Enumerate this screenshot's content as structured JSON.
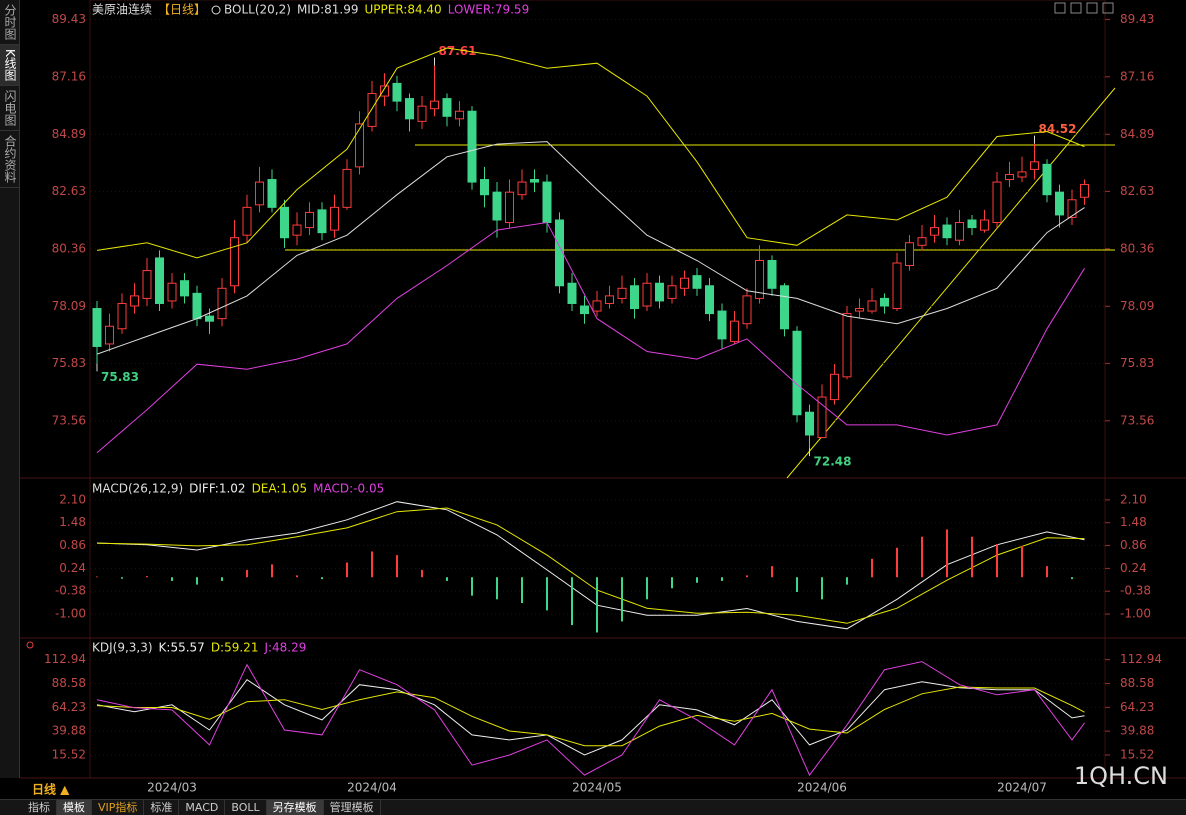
{
  "sidebar": [
    "分时图",
    "K线图",
    "闪电图",
    "合约资料"
  ],
  "toolbar": [
    "指标",
    "模板",
    "VIP指标",
    "标准",
    "MACD",
    "BOLL",
    "另存模板",
    "管理模板"
  ],
  "period": "日线 ▲",
  "watermark": "1QH.CN",
  "chart_data": [
    {
      "type": "candlestick",
      "title": "美原油连续",
      "period_tag": "【日线】",
      "indicator": "BOLL(20,2)",
      "up_color": "#ff3c3c",
      "down_color": "#3ed68b",
      "grid": true,
      "ylim": [
        71.3,
        90.0
      ],
      "yticks": [
        89.43,
        87.16,
        84.89,
        82.63,
        80.36,
        78.09,
        75.83,
        73.56
      ],
      "categories": [
        null,
        null,
        null,
        null,
        null,
        null,
        "2024/03",
        null,
        null,
        null,
        null,
        null,
        null,
        null,
        null,
        null,
        null,
        null,
        null,
        null,
        null,
        null,
        "2024/04",
        null,
        null,
        null,
        null,
        null,
        null,
        null,
        null,
        null,
        null,
        null,
        null,
        null,
        null,
        null,
        null,
        null,
        "2024/05",
        null,
        null,
        null,
        null,
        null,
        null,
        null,
        null,
        null,
        null,
        null,
        null,
        null,
        null,
        null,
        null,
        null,
        "2024/06",
        null,
        null,
        null,
        null,
        null,
        null,
        null,
        null,
        null,
        null,
        null,
        null,
        null,
        null,
        null,
        "2024/07",
        null,
        null,
        null,
        null,
        null
      ],
      "open": [
        78.0,
        76.6,
        77.2,
        78.1,
        78.4,
        80.0,
        78.3,
        79.1,
        78.6,
        77.7,
        77.6,
        78.9,
        80.9,
        82.1,
        83.1,
        82.0,
        80.9,
        81.2,
        81.9,
        81.1,
        82.0,
        83.6,
        85.2,
        86.4,
        86.9,
        86.3,
        85.4,
        85.9,
        86.3,
        85.5,
        85.8,
        83.1,
        82.6,
        81.4,
        82.5,
        83.1,
        83.0,
        81.5,
        79.0,
        78.1,
        77.9,
        78.2,
        78.4,
        78.9,
        78.1,
        79.0,
        78.4,
        78.8,
        79.3,
        78.9,
        77.9,
        76.7,
        77.4,
        78.4,
        79.9,
        78.9,
        77.1,
        73.9,
        72.9,
        74.4,
        75.3,
        77.9,
        77.9,
        78.4,
        78.0,
        79.7,
        80.5,
        80.9,
        81.3,
        80.7,
        81.5,
        81.1,
        81.4,
        83.1,
        83.2,
        83.5,
        83.7,
        82.6,
        81.6,
        82.4
      ],
      "high": [
        78.3,
        77.8,
        78.6,
        79.0,
        80.0,
        80.3,
        79.4,
        79.4,
        78.9,
        78.0,
        79.2,
        81.5,
        82.5,
        83.6,
        83.5,
        82.3,
        81.8,
        82.2,
        82.2,
        82.5,
        83.9,
        85.8,
        87.0,
        87.3,
        87.2,
        86.5,
        86.4,
        87.61,
        86.5,
        86.2,
        86.0,
        83.6,
        83.0,
        83.1,
        83.5,
        83.5,
        83.3,
        81.8,
        79.4,
        78.5,
        78.7,
        78.9,
        79.3,
        79.2,
        79.4,
        79.3,
        79.3,
        79.5,
        79.6,
        79.2,
        78.2,
        77.9,
        78.8,
        80.5,
        80.1,
        79.0,
        77.3,
        74.2,
        75.0,
        75.8,
        78.1,
        78.4,
        78.8,
        78.6,
        80.2,
        80.9,
        81.3,
        81.7,
        81.6,
        81.9,
        81.7,
        81.9,
        83.4,
        83.8,
        84.0,
        84.52,
        83.9,
        82.9,
        82.7,
        83.1
      ],
      "low": [
        75.83,
        76.3,
        77.0,
        77.8,
        78.1,
        77.9,
        78.0,
        78.2,
        77.3,
        77.0,
        77.3,
        78.6,
        80.6,
        81.8,
        81.8,
        80.4,
        80.5,
        80.9,
        80.7,
        80.8,
        81.9,
        83.3,
        85.0,
        86.0,
        85.8,
        85.0,
        85.1,
        85.6,
        85.2,
        85.2,
        82.7,
        82.0,
        80.8,
        81.2,
        82.3,
        82.6,
        81.0,
        78.6,
        77.9,
        77.4,
        77.7,
        78.0,
        78.2,
        77.6,
        77.9,
        78.0,
        78.2,
        78.5,
        78.5,
        77.5,
        76.4,
        76.6,
        77.2,
        78.2,
        78.5,
        76.9,
        73.5,
        72.48,
        72.9,
        74.2,
        75.2,
        77.6,
        77.8,
        77.8,
        77.9,
        79.5,
        80.3,
        80.6,
        80.5,
        80.5,
        80.9,
        81.0,
        81.2,
        82.8,
        83.0,
        83.1,
        82.2,
        81.2,
        81.3,
        82.1
      ],
      "close": [
        76.5,
        77.3,
        78.2,
        78.5,
        79.5,
        78.2,
        79.0,
        78.5,
        77.6,
        77.5,
        78.8,
        80.8,
        82.0,
        83.0,
        82.0,
        80.8,
        81.3,
        81.8,
        81.0,
        82.0,
        83.5,
        85.3,
        86.5,
        86.8,
        86.2,
        85.5,
        86.0,
        86.2,
        85.6,
        85.8,
        83.0,
        82.5,
        81.5,
        82.6,
        83.0,
        83.0,
        81.4,
        78.9,
        78.2,
        77.8,
        78.3,
        78.5,
        78.8,
        78.0,
        79.0,
        78.3,
        78.9,
        79.2,
        78.8,
        77.8,
        76.8,
        77.5,
        78.5,
        79.9,
        78.8,
        77.2,
        73.8,
        73.0,
        74.5,
        75.4,
        77.8,
        78.0,
        78.3,
        78.1,
        79.8,
        80.6,
        80.8,
        81.2,
        80.8,
        81.4,
        81.2,
        81.5,
        83.0,
        83.3,
        83.4,
        83.8,
        82.5,
        81.7,
        82.3,
        82.9
      ],
      "series": [
        {
          "name": "MID:81.99",
          "color": "#dddddd",
          "x": [
            0,
            4,
            8,
            12,
            16,
            20,
            24,
            28,
            32,
            36,
            40,
            44,
            48,
            52,
            56,
            60,
            64,
            68,
            72,
            76,
            79
          ],
          "values": [
            76.2,
            76.9,
            77.6,
            78.5,
            80.1,
            80.9,
            82.5,
            84.0,
            84.5,
            84.6,
            82.7,
            80.9,
            79.9,
            78.7,
            78.4,
            77.7,
            77.4,
            78.0,
            78.8,
            81.0,
            81.99
          ]
        },
        {
          "name": "UPPER:84.40",
          "color": "#e6e600",
          "x": [
            0,
            4,
            8,
            12,
            16,
            20,
            24,
            28,
            32,
            36,
            40,
            44,
            48,
            52,
            56,
            60,
            64,
            68,
            72,
            76,
            79
          ],
          "values": [
            80.3,
            80.6,
            80.0,
            80.6,
            82.7,
            84.3,
            87.5,
            88.3,
            88.0,
            87.5,
            87.7,
            86.4,
            83.8,
            80.8,
            80.5,
            81.7,
            81.5,
            82.4,
            84.8,
            85.0,
            84.4
          ]
        },
        {
          "name": "LOWER:79.59",
          "color": "#e040e0",
          "x": [
            0,
            4,
            8,
            12,
            16,
            20,
            24,
            28,
            32,
            36,
            40,
            44,
            48,
            52,
            56,
            60,
            64,
            68,
            72,
            76,
            79
          ],
          "values": [
            72.3,
            74.0,
            75.8,
            75.6,
            76.0,
            76.6,
            78.4,
            79.7,
            81.1,
            81.4,
            77.6,
            76.3,
            76.0,
            76.8,
            75.0,
            73.4,
            73.4,
            73.0,
            73.4,
            77.2,
            79.59
          ]
        }
      ]
    },
    {
      "type": "macd",
      "title": "MACD(26,12,9)",
      "grid": true,
      "ylim": [
        -1.65,
        2.64
      ],
      "yticks": [
        {
          "value": 2.1,
          "label": "2.10"
        },
        1.48,
        0.86,
        0.24,
        -0.38,
        {
          "value": -1,
          "label": "-1.00"
        }
      ],
      "series": [
        {
          "name": "DIFF:1.02",
          "color": "#eeeeee",
          "x": [
            0,
            4,
            8,
            12,
            16,
            20,
            24,
            28,
            32,
            36,
            40,
            44,
            48,
            52,
            56,
            60,
            64,
            68,
            72,
            76,
            79
          ],
          "values": [
            0.93,
            0.88,
            0.74,
            1.01,
            1.2,
            1.56,
            2.05,
            1.83,
            1.15,
            0.2,
            -0.76,
            -1.03,
            -1.03,
            -0.85,
            -1.2,
            -1.4,
            -0.6,
            0.34,
            0.88,
            1.23,
            1.02
          ]
        },
        {
          "name": "DEA:1.05",
          "color": "#e6e600",
          "x": [
            0,
            4,
            8,
            12,
            16,
            20,
            24,
            28,
            32,
            36,
            40,
            44,
            48,
            52,
            56,
            60,
            64,
            68,
            72,
            76,
            79
          ],
          "values": [
            0.92,
            0.9,
            0.85,
            0.88,
            1.1,
            1.34,
            1.78,
            1.88,
            1.42,
            0.6,
            -0.35,
            -0.84,
            -0.98,
            -0.95,
            -1.03,
            -1.25,
            -0.84,
            -0.08,
            0.6,
            1.07,
            1.05
          ]
        },
        {
          "name": "MACD:-0.05",
          "color": "#e040e0",
          "kind": "histogram",
          "up_color": "#ff3c3c",
          "down_color": "#3ed68b",
          "x": [
            0,
            2,
            4,
            6,
            8,
            10,
            12,
            14,
            16,
            18,
            20,
            22,
            24,
            26,
            28,
            30,
            32,
            34,
            36,
            38,
            40,
            42,
            44,
            46,
            48,
            50,
            52,
            54,
            56,
            58,
            60,
            62,
            64,
            66,
            68,
            70,
            72,
            74,
            76,
            78
          ],
          "values": [
            0.02,
            -0.04,
            0.03,
            -0.1,
            -0.2,
            -0.1,
            0.2,
            0.35,
            0.05,
            -0.05,
            0.4,
            0.7,
            0.6,
            0.2,
            -0.1,
            -0.5,
            -0.6,
            -0.7,
            -0.9,
            -1.3,
            -1.5,
            -1.2,
            -0.6,
            -0.3,
            -0.15,
            -0.1,
            0.05,
            0.3,
            -0.4,
            -0.6,
            -0.2,
            0.5,
            0.8,
            1.1,
            1.3,
            1.1,
            0.9,
            0.85,
            0.3,
            -0.05
          ]
        }
      ]
    },
    {
      "type": "kdj",
      "title": "KDJ(9,3,3)",
      "grid": true,
      "ylim": [
        -8,
        133
      ],
      "yticks": [
        112.94,
        88.58,
        64.23,
        39.88,
        15.52
      ],
      "series": [
        {
          "name": "K:55.57",
          "color": "#eeeeee",
          "x": [
            0,
            3,
            6,
            9,
            12,
            15,
            18,
            21,
            24,
            27,
            30,
            33,
            36,
            39,
            42,
            45,
            48,
            51,
            54,
            57,
            60,
            63,
            66,
            69,
            72,
            75,
            78,
            79
          ],
          "values": [
            66.8,
            59.6,
            66.8,
            41,
            92.4,
            66.8,
            51.4,
            87.3,
            82.2,
            66.8,
            36,
            30.9,
            36,
            15.5,
            30.9,
            66.8,
            61.6,
            46.3,
            71.9,
            25.8,
            41,
            82.2,
            90.4,
            84.2,
            82.2,
            82.2,
            53.4,
            55.57
          ]
        },
        {
          "name": "D:59.21",
          "color": "#e6e600",
          "x": [
            0,
            3,
            6,
            9,
            12,
            15,
            18,
            21,
            24,
            27,
            30,
            33,
            36,
            39,
            42,
            45,
            48,
            51,
            54,
            57,
            60,
            63,
            66,
            69,
            72,
            75,
            78,
            79
          ],
          "values": [
            66,
            64,
            64,
            52,
            70,
            72,
            62,
            72,
            80,
            74,
            55,
            40,
            36,
            25,
            25,
            45,
            56,
            50,
            58,
            42,
            38,
            62,
            78,
            85,
            84,
            84,
            66,
            59.21
          ]
        },
        {
          "name": "J:48.29",
          "color": "#e040e0",
          "x": [
            0,
            3,
            6,
            9,
            12,
            15,
            18,
            21,
            24,
            27,
            30,
            33,
            36,
            39,
            42,
            45,
            48,
            51,
            54,
            57,
            60,
            63,
            66,
            69,
            72,
            75,
            78,
            79
          ],
          "values": [
            71.9,
            63.7,
            61.6,
            25.8,
            107.8,
            41,
            36,
            102.7,
            87.3,
            61.6,
            5.2,
            15.5,
            30.9,
            -5,
            15.5,
            71.9,
            51.4,
            25.8,
            82.2,
            -5,
            46.3,
            102.7,
            110.9,
            87.3,
            77,
            82.2,
            30.9,
            48.29
          ]
        }
      ]
    }
  ]
}
